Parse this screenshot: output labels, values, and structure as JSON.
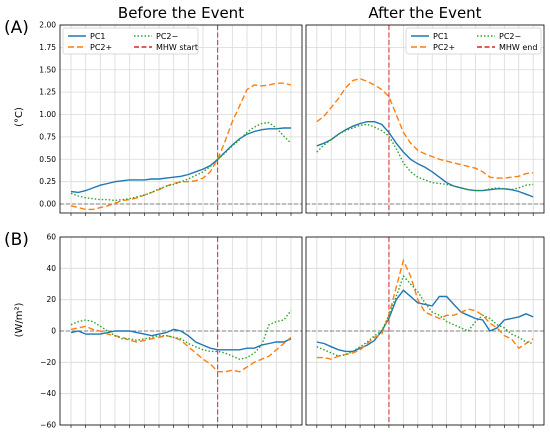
{
  "figure": {
    "row_labels": [
      "(A)",
      "(B)"
    ],
    "col_titles": [
      "Before the Event",
      "After the Event"
    ]
  },
  "colors": {
    "PC1": "#1f77b4",
    "PC2+": "#ff7f0e",
    "PC2-": "#2ca02c",
    "event": "#d62728",
    "zero": "#808080"
  },
  "chart_data": [
    {
      "id": "A-before",
      "type": "line",
      "title": "Before the Event",
      "panel_label": "(A)",
      "ylabel": "(°C)",
      "ylim": [
        -0.1,
        2.0
      ],
      "yticks": [
        0.0,
        0.25,
        0.5,
        0.75,
        1.0,
        1.25,
        1.5,
        1.75,
        2.0
      ],
      "ytick_labels": [
        "0.00",
        "0.25",
        "0.50",
        "0.75",
        "1.00",
        "1.25",
        "1.50",
        "1.75",
        "2.00"
      ],
      "grid": true,
      "legend": {
        "placement": "top-left",
        "columns": 2,
        "order": [
          "PC1",
          "PC2-",
          "PC2+",
          "MHW start"
        ]
      },
      "event_line": {
        "label": "MHW start",
        "x": 20
      },
      "zero_line": 0,
      "x": [
        0,
        1,
        2,
        3,
        4,
        5,
        6,
        7,
        8,
        9,
        10,
        11,
        12,
        13,
        14,
        15,
        16,
        17,
        18,
        19,
        20,
        21,
        22,
        23,
        24,
        25,
        26,
        27,
        28,
        29,
        30
      ],
      "series": [
        {
          "name": "PC1",
          "style": "solid",
          "values": [
            0.14,
            0.13,
            0.15,
            0.18,
            0.21,
            0.23,
            0.25,
            0.26,
            0.27,
            0.27,
            0.27,
            0.28,
            0.28,
            0.29,
            0.3,
            0.31,
            0.33,
            0.36,
            0.39,
            0.43,
            0.5,
            0.58,
            0.66,
            0.73,
            0.78,
            0.81,
            0.83,
            0.84,
            0.84,
            0.85,
            0.85
          ]
        },
        {
          "name": "PC2+",
          "style": "dashed",
          "values": [
            -0.02,
            -0.04,
            -0.06,
            -0.06,
            -0.04,
            -0.02,
            0.01,
            0.04,
            0.05,
            0.07,
            0.1,
            0.13,
            0.16,
            0.2,
            0.23,
            0.25,
            0.25,
            0.26,
            0.29,
            0.36,
            0.5,
            0.7,
            0.92,
            1.1,
            1.28,
            1.33,
            1.32,
            1.33,
            1.35,
            1.35,
            1.33
          ]
        },
        {
          "name": "PC2-",
          "style": "dotted",
          "values": [
            0.12,
            0.09,
            0.07,
            0.06,
            0.05,
            0.05,
            0.04,
            0.05,
            0.06,
            0.08,
            0.1,
            0.13,
            0.17,
            0.2,
            0.22,
            0.25,
            0.28,
            0.32,
            0.36,
            0.42,
            0.5,
            0.57,
            0.65,
            0.72,
            0.8,
            0.86,
            0.9,
            0.91,
            0.85,
            0.76,
            0.68
          ]
        }
      ]
    },
    {
      "id": "A-after",
      "type": "line",
      "title": "After the Event",
      "ylim": [
        -0.1,
        2.0
      ],
      "grid": true,
      "legend": {
        "placement": "top-right",
        "columns": 2,
        "order": [
          "PC1",
          "PC2-",
          "PC2+",
          "MHW end"
        ]
      },
      "event_line": {
        "label": "MHW end",
        "x": 10
      },
      "zero_line": 0,
      "x": [
        0,
        1,
        2,
        3,
        4,
        5,
        6,
        7,
        8,
        9,
        10,
        11,
        12,
        13,
        14,
        15,
        16,
        17,
        18,
        19,
        20,
        21,
        22,
        23,
        24,
        25,
        26,
        27,
        28,
        29,
        30
      ],
      "series": [
        {
          "name": "PC1",
          "style": "solid",
          "values": [
            0.65,
            0.68,
            0.72,
            0.78,
            0.83,
            0.87,
            0.9,
            0.92,
            0.92,
            0.89,
            0.8,
            0.68,
            0.58,
            0.5,
            0.45,
            0.41,
            0.36,
            0.3,
            0.24,
            0.2,
            0.18,
            0.16,
            0.15,
            0.15,
            0.16,
            0.17,
            0.17,
            0.16,
            0.14,
            0.11,
            0.08
          ]
        },
        {
          "name": "PC2+",
          "style": "dashed",
          "values": [
            0.92,
            0.98,
            1.08,
            1.18,
            1.3,
            1.38,
            1.4,
            1.37,
            1.33,
            1.28,
            1.2,
            1.0,
            0.8,
            0.68,
            0.6,
            0.56,
            0.53,
            0.5,
            0.48,
            0.46,
            0.44,
            0.42,
            0.4,
            0.36,
            0.3,
            0.29,
            0.29,
            0.3,
            0.31,
            0.34,
            0.35
          ]
        },
        {
          "name": "PC2-",
          "style": "dotted",
          "values": [
            0.58,
            0.66,
            0.72,
            0.78,
            0.82,
            0.85,
            0.88,
            0.89,
            0.86,
            0.82,
            0.76,
            0.62,
            0.46,
            0.36,
            0.3,
            0.27,
            0.24,
            0.23,
            0.22,
            0.2,
            0.18,
            0.16,
            0.15,
            0.15,
            0.17,
            0.18,
            0.17,
            0.16,
            0.18,
            0.21,
            0.22
          ]
        }
      ]
    },
    {
      "id": "B-before",
      "type": "line",
      "panel_label": "(B)",
      "ylabel": "(W/m²)",
      "ylim": [
        -60,
        60
      ],
      "yticks": [
        -60,
        -40,
        -20,
        0,
        20,
        40,
        60
      ],
      "ytick_labels": [
        "−60",
        "−40",
        "−20",
        "0",
        "20",
        "40",
        "60"
      ],
      "grid": true,
      "event_line": {
        "x": 20
      },
      "zero_line": 0,
      "x": [
        0,
        1,
        2,
        3,
        4,
        5,
        6,
        7,
        8,
        9,
        10,
        11,
        12,
        13,
        14,
        15,
        16,
        17,
        18,
        19,
        20,
        21,
        22,
        23,
        24,
        25,
        26,
        27,
        28,
        29,
        30
      ],
      "series": [
        {
          "name": "PC1",
          "style": "solid",
          "values": [
            -1,
            0,
            -2,
            -2,
            -2,
            -1,
            0,
            0,
            0,
            -1,
            -2,
            -3,
            -2,
            -1,
            1,
            0,
            -3,
            -7,
            -9,
            -11,
            -12,
            -12,
            -12,
            -12,
            -11,
            -11,
            -9,
            -8,
            -7,
            -7,
            -5
          ]
        },
        {
          "name": "PC2+",
          "style": "dashed",
          "values": [
            1,
            2,
            3,
            1,
            0,
            -2,
            -3,
            -4,
            -6,
            -7,
            -6,
            -5,
            -4,
            -3,
            -4,
            -6,
            -10,
            -14,
            -18,
            -21,
            -26,
            -26,
            -25,
            -26,
            -23,
            -20,
            -18,
            -16,
            -12,
            -8,
            -4
          ]
        },
        {
          "name": "PC2-",
          "style": "dotted",
          "values": [
            4,
            6,
            7,
            6,
            3,
            0,
            -3,
            -5,
            -5,
            -6,
            -5,
            -4,
            -3,
            -3,
            -4,
            -5,
            -8,
            -10,
            -12,
            -13,
            -13,
            -14,
            -16,
            -18,
            -17,
            -14,
            -9,
            4,
            6,
            7,
            13
          ]
        }
      ]
    },
    {
      "id": "B-after",
      "type": "line",
      "ylim": [
        -60,
        60
      ],
      "grid": true,
      "event_line": {
        "x": 10
      },
      "zero_line": 0,
      "x": [
        0,
        1,
        2,
        3,
        4,
        5,
        6,
        7,
        8,
        9,
        10,
        11,
        12,
        13,
        14,
        15,
        16,
        17,
        18,
        19,
        20,
        21,
        22,
        23,
        24,
        25,
        26,
        27,
        28,
        29,
        30
      ],
      "series": [
        {
          "name": "PC1",
          "style": "solid",
          "values": [
            -7,
            -8,
            -10,
            -12,
            -13,
            -13,
            -11,
            -9,
            -6,
            0,
            8,
            20,
            26,
            22,
            18,
            17,
            16,
            22,
            22,
            17,
            12,
            10,
            8,
            7,
            0,
            2,
            7,
            8,
            9,
            11,
            9
          ]
        },
        {
          "name": "PC2+",
          "style": "dashed",
          "values": [
            -17,
            -17,
            -18,
            -16,
            -15,
            -14,
            -12,
            -8,
            -4,
            -2,
            10,
            28,
            45,
            35,
            20,
            12,
            10,
            8,
            10,
            10,
            12,
            14,
            13,
            10,
            5,
            2,
            -3,
            -5,
            -11,
            -8,
            -5
          ]
        },
        {
          "name": "PC2-",
          "style": "dotted",
          "values": [
            -10,
            -12,
            -14,
            -16,
            -15,
            -13,
            -10,
            -7,
            -3,
            0,
            10,
            22,
            35,
            30,
            25,
            18,
            12,
            10,
            6,
            4,
            2,
            0,
            6,
            10,
            8,
            4,
            2,
            -2,
            -4,
            -7,
            -8
          ]
        }
      ]
    }
  ]
}
